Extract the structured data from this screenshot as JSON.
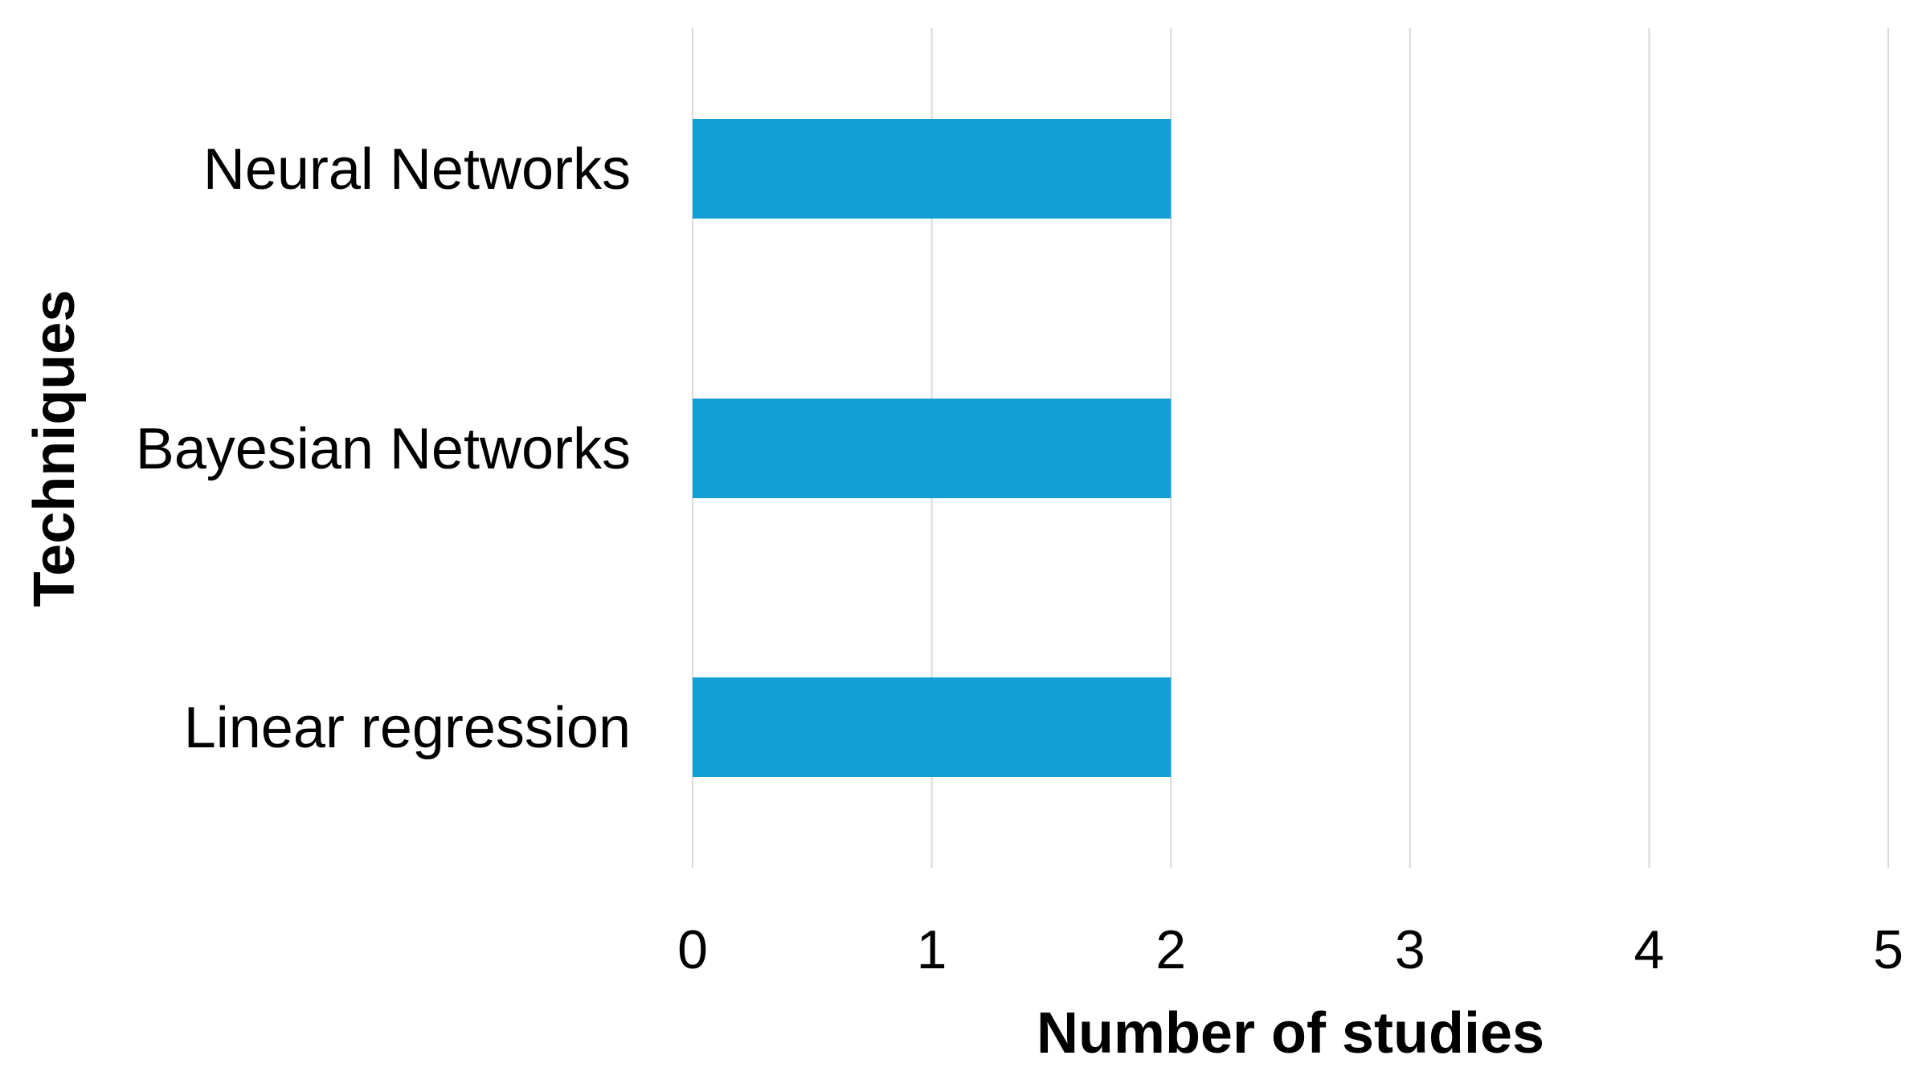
{
  "chart_data": {
    "type": "bar",
    "orientation": "horizontal",
    "categories": [
      "Neural Networks",
      "Bayesian Networks",
      "Linear regression"
    ],
    "series": [
      {
        "values": [
          2,
          2,
          2
        ]
      }
    ],
    "xlabel": "Number of studies",
    "ylabel": "Techniques",
    "xlim": [
      0,
      5
    ],
    "xticks": [
      "0",
      "1",
      "2",
      "3",
      "4",
      "5"
    ],
    "grid": "vertical",
    "legend": "none",
    "bar_color": "#129FD6",
    "gridline_color": "#D9D9D9"
  }
}
